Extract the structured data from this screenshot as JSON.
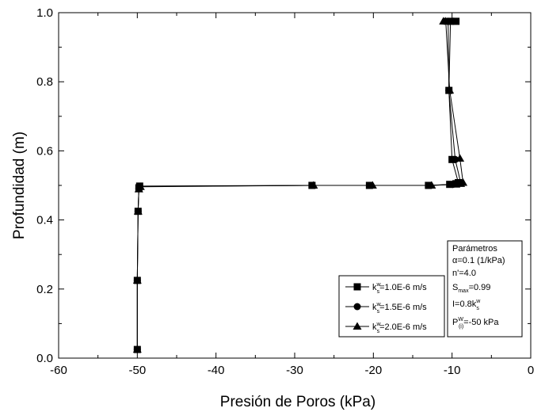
{
  "chart_data": {
    "type": "line",
    "xlabel": "Presión de Poros (kPa)",
    "ylabel": "Profundidad (m)",
    "xlim": [
      -60,
      0
    ],
    "ylim": [
      0.0,
      1.0
    ],
    "x_ticks": [
      "-60",
      "-50",
      "-40",
      "-30",
      "-20",
      "-10",
      "0"
    ],
    "y_ticks": [
      "0.0",
      "0.2",
      "0.4",
      "0.6",
      "0.8",
      "1.0"
    ],
    "grid": false,
    "legend_position": "bottom-center",
    "series": [
      {
        "legend": {
          "base": "k",
          "sup": "w",
          "sub": "s",
          "value": "=1.0E-6 m/s"
        },
        "marker": "square",
        "points": [
          [
            -50.0,
            0.025
          ],
          [
            -50.0,
            0.225
          ],
          [
            -49.9,
            0.425
          ],
          [
            -49.8,
            0.493
          ],
          [
            -49.7,
            0.498
          ],
          [
            -27.8,
            0.5
          ],
          [
            -20.5,
            0.5
          ],
          [
            -13.0,
            0.5
          ],
          [
            -10.3,
            0.503
          ],
          [
            -9.5,
            0.505
          ],
          [
            -9.2,
            0.508
          ],
          [
            -10.0,
            0.575
          ],
          [
            -10.4,
            0.775
          ],
          [
            -10.2,
            0.975
          ],
          [
            -9.5,
            0.975
          ]
        ]
      },
      {
        "legend": {
          "base": "k",
          "sup": "w",
          "sub": "s",
          "value": "=1.5E-6 m/s"
        },
        "marker": "circle",
        "points": [
          [
            -50.0,
            0.025
          ],
          [
            -50.0,
            0.225
          ],
          [
            -49.9,
            0.425
          ],
          [
            -49.8,
            0.491
          ],
          [
            -49.7,
            0.497
          ],
          [
            -27.8,
            0.5
          ],
          [
            -20.3,
            0.5
          ],
          [
            -12.8,
            0.5
          ],
          [
            -9.9,
            0.503
          ],
          [
            -9.2,
            0.505
          ],
          [
            -8.9,
            0.508
          ],
          [
            -9.6,
            0.575
          ],
          [
            -10.4,
            0.775
          ],
          [
            -10.5,
            0.975
          ],
          [
            -10.9,
            0.975
          ]
        ]
      },
      {
        "legend": {
          "base": "k",
          "sup": "w",
          "sub": "s",
          "value": "=2.0E-6 m/s"
        },
        "marker": "triangle",
        "points": [
          [
            -50.0,
            0.025
          ],
          [
            -50.0,
            0.225
          ],
          [
            -49.9,
            0.425
          ],
          [
            -49.8,
            0.489
          ],
          [
            -49.6,
            0.496
          ],
          [
            -27.6,
            0.5
          ],
          [
            -20.1,
            0.5
          ],
          [
            -12.6,
            0.5
          ],
          [
            -9.5,
            0.503
          ],
          [
            -8.9,
            0.505
          ],
          [
            -8.6,
            0.508
          ],
          [
            -9.0,
            0.578
          ],
          [
            -10.3,
            0.775
          ],
          [
            -10.8,
            0.975
          ],
          [
            -11.1,
            0.975
          ]
        ]
      }
    ],
    "parameters_box": {
      "title": "Parámetros",
      "alpha": "α=0.1 (1/kPa)",
      "n": "n'=4.0",
      "smax_base": "S",
      "smax_sub": "max",
      "smax_value": "=0.99",
      "i_value": "I=0.8k",
      "i_sup": "w",
      "i_sub": "s",
      "p_base": "P",
      "p_sup": "W",
      "p_sub": "(i)",
      "p_value": "=-50 kPa"
    }
  }
}
